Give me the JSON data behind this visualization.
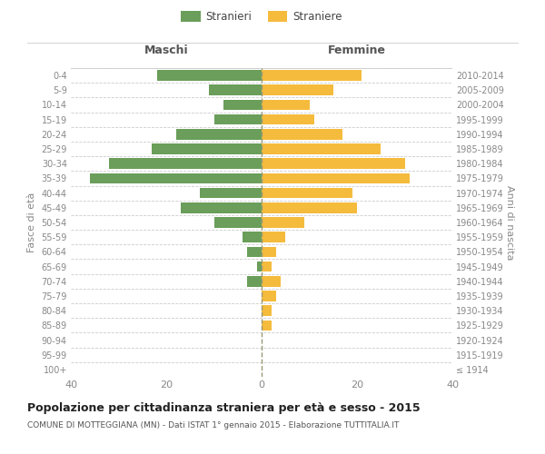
{
  "age_groups": [
    "100+",
    "95-99",
    "90-94",
    "85-89",
    "80-84",
    "75-79",
    "70-74",
    "65-69",
    "60-64",
    "55-59",
    "50-54",
    "45-49",
    "40-44",
    "35-39",
    "30-34",
    "25-29",
    "20-24",
    "15-19",
    "10-14",
    "5-9",
    "0-4"
  ],
  "birth_years": [
    "≤ 1914",
    "1915-1919",
    "1920-1924",
    "1925-1929",
    "1930-1934",
    "1935-1939",
    "1940-1944",
    "1945-1949",
    "1950-1954",
    "1955-1959",
    "1960-1964",
    "1965-1969",
    "1970-1974",
    "1975-1979",
    "1980-1984",
    "1985-1989",
    "1990-1994",
    "1995-1999",
    "2000-2004",
    "2005-2009",
    "2010-2014"
  ],
  "maschi": [
    0,
    0,
    0,
    0,
    0,
    0,
    3,
    1,
    3,
    4,
    10,
    17,
    13,
    36,
    32,
    23,
    18,
    10,
    8,
    11,
    22
  ],
  "femmine": [
    0,
    0,
    0,
    2,
    2,
    3,
    4,
    2,
    3,
    5,
    9,
    20,
    19,
    31,
    30,
    25,
    17,
    11,
    10,
    15,
    21
  ],
  "maschi_color": "#6a9e5a",
  "femmine_color": "#f5bb3d",
  "background_color": "#ffffff",
  "title": "Popolazione per cittadinanza straniera per età e sesso - 2015",
  "subtitle": "COMUNE DI MOTTEGGIANA (MN) - Dati ISTAT 1° gennaio 2015 - Elaborazione TUTTITALIA.IT",
  "ylabel_left": "Fasce di età",
  "ylabel_right": "Anni di nascita",
  "header_left": "Maschi",
  "header_right": "Femmine",
  "legend_maschi": "Stranieri",
  "legend_femmine": "Straniere",
  "xlim": 40,
  "grid_color": "#cccccc",
  "dashed_line_color": "#999977"
}
